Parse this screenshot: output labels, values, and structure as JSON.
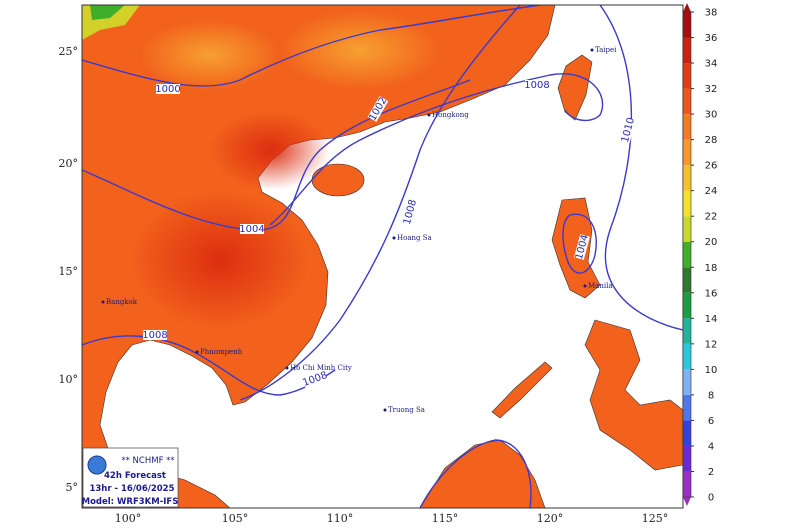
{
  "map": {
    "lat_labels": [
      "25°",
      "20°",
      "15°",
      "10°",
      "5°"
    ],
    "lon_labels": [
      "100°",
      "105°",
      "110°",
      "115°",
      "120°",
      "125°"
    ],
    "colorbar": {
      "ticks": [
        0,
        2,
        4,
        6,
        8,
        10,
        12,
        14,
        16,
        18,
        20,
        22,
        24,
        26,
        28,
        30,
        32,
        34,
        36,
        38
      ],
      "colors": [
        "#9b30c8",
        "#6a2bd6",
        "#3540e0",
        "#4f78ee",
        "#7fb2f5",
        "#29c9d9",
        "#1fb59a",
        "#1f9a45",
        "#2d7a2d",
        "#3fae2a",
        "#c8d92a",
        "#f5e02a",
        "#f5c02a",
        "#f59a2a",
        "#f57a28",
        "#ee5520",
        "#e33a18",
        "#cc2210",
        "#a50f0f"
      ]
    },
    "isobar_labels": [
      "1000",
      "1002",
      "1004",
      "1008",
      "1008",
      "1010",
      "1004",
      "1008",
      "1008"
    ],
    "places": [
      "Taipei",
      "Hongkong",
      "Hoang Sa",
      "Manila",
      "Bangkok",
      "Phnompenh",
      "Ho Chi Minh City",
      "Truong Sa"
    ],
    "info": {
      "org": "** NCHMF **",
      "forecast": "42h Forecast",
      "time": "13hr - 16/06/2025",
      "model": "Model: WRF3KM-IFS"
    }
  }
}
